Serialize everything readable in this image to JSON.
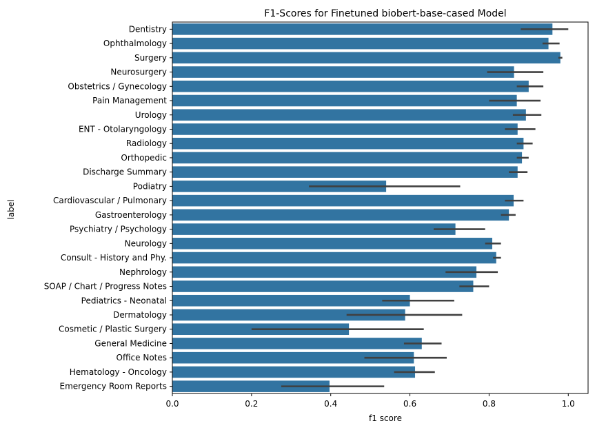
{
  "chart_data": {
    "type": "bar",
    "orientation": "horizontal",
    "title": "F1-Scores for Finetuned biobert-base-cased Model",
    "xlabel": "f1 score",
    "ylabel": "label",
    "xlim": [
      0,
      1.05
    ],
    "xticks": [
      0.0,
      0.2,
      0.4,
      0.6,
      0.8,
      1.0
    ],
    "xtick_labels": [
      "0.0",
      "0.2",
      "0.4",
      "0.6",
      "0.8",
      "1.0"
    ],
    "grid": false,
    "bar_color": "#3274a1",
    "errorbar_color": "#404040",
    "categories": [
      "Dentistry",
      "Ophthalmology",
      "Surgery",
      "Neurosurgery",
      "Obstetrics / Gynecology",
      "Pain Management",
      "Urology",
      "ENT - Otolaryngology",
      "Radiology",
      "Orthopedic",
      "Discharge Summary",
      "Podiatry",
      "Cardiovascular / Pulmonary",
      "Gastroenterology",
      "Psychiatry / Psychology",
      "Neurology",
      "Consult - History and Phy.",
      "Nephrology",
      "SOAP / Chart / Progress Notes",
      "Pediatrics - Neonatal",
      "Dermatology",
      "Cosmetic / Plastic Surgery",
      "General Medicine",
      "Office Notes",
      "Hematology - Oncology",
      "Emergency Room Reports"
    ],
    "values": [
      0.96,
      0.95,
      0.98,
      0.863,
      0.9,
      0.87,
      0.893,
      0.872,
      0.887,
      0.883,
      0.872,
      0.54,
      0.862,
      0.85,
      0.715,
      0.808,
      0.818,
      0.768,
      0.76,
      0.6,
      0.588,
      0.446,
      0.63,
      0.61,
      0.613,
      0.397
    ],
    "error_low": [
      0.88,
      0.935,
      0.975,
      0.795,
      0.87,
      0.8,
      0.86,
      0.84,
      0.87,
      0.87,
      0.85,
      0.345,
      0.84,
      0.83,
      0.66,
      0.79,
      0.81,
      0.69,
      0.725,
      0.53,
      0.44,
      0.2,
      0.585,
      0.485,
      0.56,
      0.275
    ],
    "error_high": [
      1.0,
      0.978,
      0.985,
      0.937,
      0.937,
      0.93,
      0.932,
      0.917,
      0.91,
      0.9,
      0.897,
      0.727,
      0.887,
      0.867,
      0.79,
      0.83,
      0.83,
      0.822,
      0.8,
      0.712,
      0.732,
      0.635,
      0.68,
      0.693,
      0.663,
      0.535
    ]
  }
}
